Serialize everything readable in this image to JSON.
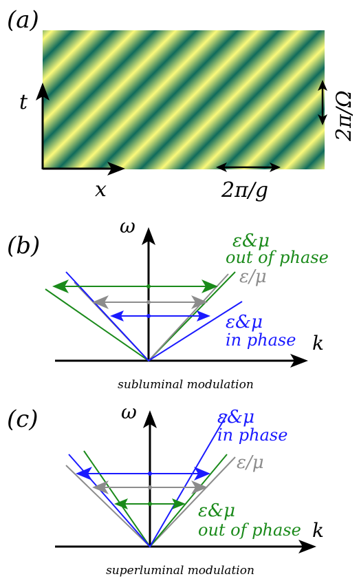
{
  "panel_a": {
    "label": "(a)",
    "t_axis": "t",
    "x_axis": "x",
    "period_space": "2π/g",
    "period_time": "2π/Ω",
    "colors": {
      "light": "#fbf97a",
      "dark": "#0f6b5c"
    }
  },
  "panel_b": {
    "label": "(b)",
    "omega": "ω",
    "k": "k",
    "caption": "subluminal modulation",
    "green_line1": "ε&μ",
    "green_line2": "out of phase",
    "gray_label": "ε/μ",
    "blue_line1": "ε&μ",
    "blue_line2": "in phase"
  },
  "panel_c": {
    "label": "(c)",
    "omega": "ω",
    "k": "k",
    "caption": "superluminal modulation",
    "blue_line1": "ε&μ",
    "blue_line2": "in phase",
    "gray_label": "ε/μ",
    "green_line1": "ε&μ",
    "green_line2": "out of phase"
  },
  "colors": {
    "green": "#1a8a1a",
    "gray": "#8c8c8c",
    "blue": "#1a1aff",
    "black": "#000000"
  }
}
